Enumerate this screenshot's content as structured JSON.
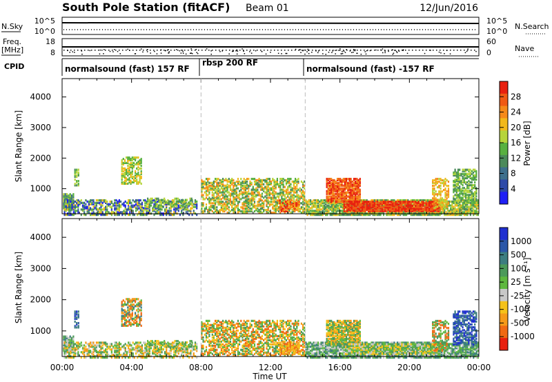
{
  "header": {
    "title": "South Pole Station (fitACF)",
    "beam": "Beam 01",
    "date": "12/Jun/2016"
  },
  "top_panels": {
    "nsky_label": "N.Sky",
    "nsky_ticks": [
      "10^5",
      "10^0"
    ],
    "nsearch_label": "N.Search",
    "nsearch_ticks": [
      "10^5",
      "10^0"
    ],
    "freq_label": "Freq.",
    "freq_unit": "[MHz]",
    "freq_ticks": [
      "18",
      "8"
    ],
    "nave_label": "Nave",
    "nave_ticks": [
      "60",
      "0"
    ],
    "cpid_label": "CPID",
    "cpid_segments": [
      {
        "label": "normalsound (fast) 157 RF",
        "start": 0,
        "end": 8
      },
      {
        "label": "rbsp 200 RF",
        "start": 8,
        "end": 14
      },
      {
        "label": "normalsound (fast) -157 RF",
        "start": 14,
        "end": 24
      }
    ]
  },
  "colors": {
    "power": [
      "#1f1ff5",
      "#2e4aa8",
      "#3d6f8c",
      "#4b8a5a",
      "#58b040",
      "#b6d43a",
      "#f2b81a",
      "#f58a1a",
      "#f05a14",
      "#e8200f"
    ],
    "velocity": [
      "#1f2fd0",
      "#2b57a8",
      "#3c7d80",
      "#4c9a5a",
      "#5fb83f",
      "#c8c8c8",
      "#f5c21a",
      "#f59a1a",
      "#f06a14",
      "#e8200f"
    ]
  },
  "chart_data": [
    {
      "type": "heatmap",
      "panel": "power",
      "xlabel": "",
      "ylabel": "Slant Range [km]",
      "x_range": [
        0,
        24
      ],
      "y_range": [
        180,
        4600
      ],
      "y_ticks": [
        1000,
        2000,
        3000,
        4000
      ],
      "colorbar_label": "Power [dB]",
      "colorbar_range": [
        0,
        32
      ],
      "colorbar_ticks": [
        "4",
        "8",
        "12",
        "16",
        "20",
        "24",
        "28"
      ]
    },
    {
      "type": "heatmap",
      "panel": "velocity",
      "xlabel": "Time UT",
      "ylabel": "Slant Range [km]",
      "x_range": [
        0,
        24
      ],
      "y_range": [
        180,
        4600
      ],
      "x_ticks": [
        "00:00",
        "04:00",
        "08:00",
        "12:00",
        "16:00",
        "20:00",
        "00:00"
      ],
      "y_ticks": [
        1000,
        2000,
        3000,
        4000
      ],
      "colorbar_label": "Velocity [m s⁻¹]",
      "colorbar_ticks": [
        "1000",
        "500",
        "100",
        "25",
        "-25",
        "-100",
        "-500",
        "-1000"
      ]
    }
  ]
}
